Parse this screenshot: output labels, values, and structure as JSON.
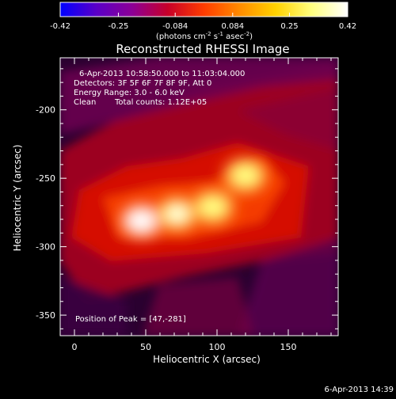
{
  "chart_data": {
    "type": "heatmap",
    "title": "Reconstructed RHESSI Image",
    "xlabel": "Heliocentric X (arcsec)",
    "ylabel": "Heliocentric Y (arcsec)",
    "xlim": [
      -10,
      185
    ],
    "ylim": [
      -365,
      -162
    ],
    "x_ticks": [
      "0",
      "50",
      "100",
      "150"
    ],
    "x_tick_values": [
      0,
      50,
      100,
      150
    ],
    "y_ticks": [
      "-200",
      "-250",
      "-300",
      "-350"
    ],
    "y_tick_values": [
      -200,
      -250,
      -300,
      -350
    ],
    "colorbar": {
      "min": -0.42,
      "max": 0.42,
      "tick_labels": [
        "-0.42",
        "-0.25",
        "-0.084",
        "0.084",
        "0.25",
        "0.42"
      ],
      "tick_values": [
        -0.42,
        -0.25,
        -0.084,
        0.084,
        0.25,
        0.42
      ],
      "label_main": "(photons cm",
      "label_sup1": "-2",
      "label_mid": " s",
      "label_sup2": "-1",
      "label_mid2": " asec",
      "label_sup3": "-2",
      "label_end": ")",
      "colors": [
        "#0000ff",
        "#5a00c8",
        "#8c0096",
        "#c80028",
        "#ff3c00",
        "#ff8c00",
        "#ffd200",
        "#ffff80",
        "#ffffff"
      ]
    },
    "annotations": {
      "time_range": "6-Apr-2013 10:58:50.000 to 11:03:04.000",
      "detectors": "Detectors: 3F 5F 6F 7F 8F 9F, Att 0",
      "energy_range": "Energy Range: 3.0 - 6.0 keV",
      "clean": "Clean",
      "total_counts": "Total counts: 1.12E+05",
      "peak": "Position of Peak = [47,-281]"
    },
    "sources": [
      {
        "x": 47,
        "y": -281,
        "value": 0.42
      },
      {
        "x": 72,
        "y": -276,
        "value": 0.37
      },
      {
        "x": 97,
        "y": -271,
        "value": 0.35
      },
      {
        "x": 120,
        "y": -248,
        "value": 0.33
      }
    ]
  },
  "footer": {
    "timestamp": "6-Apr-2013 14:39"
  }
}
